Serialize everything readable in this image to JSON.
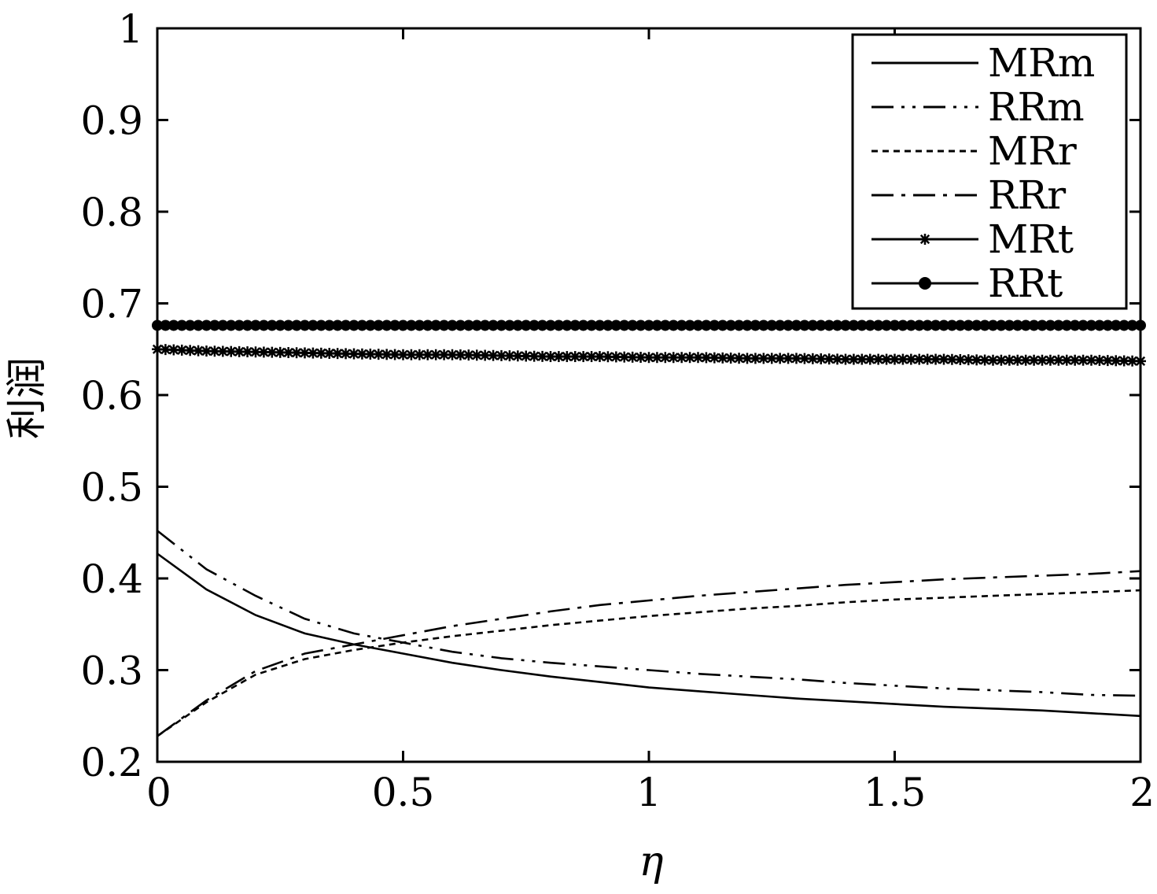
{
  "chart_data": {
    "type": "line",
    "title": "",
    "xlabel": "η",
    "ylabel": "利润",
    "xlim": [
      0,
      2
    ],
    "ylim": [
      0.2,
      1
    ],
    "xticks": [
      0,
      0.5,
      1,
      1.5,
      2
    ],
    "xtick_labels": [
      "0",
      "0.5",
      "1",
      "1.5",
      "2"
    ],
    "yticks": [
      0.2,
      0.3,
      0.4,
      0.5,
      0.6,
      0.7,
      0.8,
      0.9,
      1
    ],
    "ytick_labels": [
      "0.2",
      "0.3",
      "0.4",
      "0.5",
      "0.6",
      "0.7",
      "0.8",
      "0.9",
      "1"
    ],
    "grid": false,
    "legend_position": "top-right",
    "x": [
      0,
      0.1,
      0.2,
      0.3,
      0.4,
      0.5,
      0.6,
      0.7,
      0.8,
      0.9,
      1.0,
      1.1,
      1.2,
      1.3,
      1.4,
      1.5,
      1.6,
      1.7,
      1.8,
      1.9,
      2.0
    ],
    "series": [
      {
        "name": "MRm",
        "style": "solid",
        "marker": "none",
        "values": [
          0.427,
          0.388,
          0.36,
          0.34,
          0.328,
          0.318,
          0.308,
          0.3,
          0.293,
          0.287,
          0.281,
          0.277,
          0.273,
          0.269,
          0.266,
          0.263,
          0.26,
          0.258,
          0.256,
          0.253,
          0.25
        ]
      },
      {
        "name": "RRm",
        "style": "dashdotdot",
        "marker": "none",
        "values": [
          0.452,
          0.41,
          0.381,
          0.356,
          0.34,
          0.33,
          0.32,
          0.313,
          0.308,
          0.304,
          0.3,
          0.296,
          0.293,
          0.29,
          0.286,
          0.283,
          0.28,
          0.278,
          0.276,
          0.273,
          0.272
        ]
      },
      {
        "name": "MRr",
        "style": "dotted",
        "marker": "none",
        "values": [
          0.228,
          0.265,
          0.295,
          0.312,
          0.322,
          0.33,
          0.337,
          0.343,
          0.349,
          0.354,
          0.359,
          0.363,
          0.367,
          0.37,
          0.374,
          0.377,
          0.379,
          0.381,
          0.383,
          0.385,
          0.387
        ]
      },
      {
        "name": "RRr",
        "style": "dashdot",
        "marker": "none",
        "values": [
          0.228,
          0.267,
          0.299,
          0.318,
          0.328,
          0.338,
          0.348,
          0.356,
          0.364,
          0.371,
          0.376,
          0.381,
          0.385,
          0.389,
          0.393,
          0.396,
          0.399,
          0.401,
          0.403,
          0.405,
          0.408
        ]
      },
      {
        "name": "MRt",
        "style": "solid",
        "marker": "star",
        "values": [
          0.65,
          0.648,
          0.647,
          0.646,
          0.645,
          0.644,
          0.644,
          0.643,
          0.642,
          0.642,
          0.641,
          0.641,
          0.64,
          0.64,
          0.639,
          0.639,
          0.639,
          0.638,
          0.638,
          0.638,
          0.637
        ]
      },
      {
        "name": "RRt",
        "style": "solid",
        "marker": "circle",
        "values": [
          0.676,
          0.676,
          0.676,
          0.676,
          0.676,
          0.676,
          0.676,
          0.676,
          0.676,
          0.676,
          0.676,
          0.676,
          0.676,
          0.676,
          0.676,
          0.676,
          0.676,
          0.676,
          0.676,
          0.676,
          0.676
        ]
      }
    ],
    "colors": {
      "line": "#000000",
      "background": "#ffffff"
    }
  }
}
